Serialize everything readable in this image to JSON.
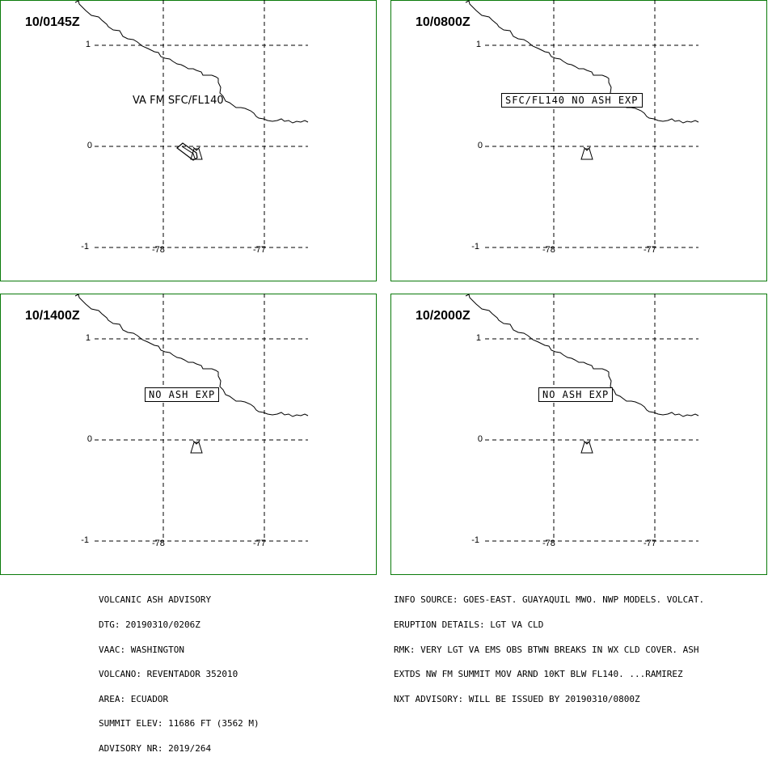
{
  "panels": [
    {
      "time": "10/0145Z",
      "annotation": "VA FM SFC/FL140",
      "annotation_boxed": false,
      "ash_polygon": true
    },
    {
      "time": "10/0800Z",
      "annotation": "SFC/FL140 NO ASH EXP",
      "annotation_boxed": true,
      "ash_polygon": false
    },
    {
      "time": "10/1400Z",
      "annotation": "NO ASH EXP",
      "annotation_boxed": true,
      "ash_polygon": false
    },
    {
      "time": "10/2000Z",
      "annotation": "NO ASH EXP",
      "annotation_boxed": true,
      "ash_polygon": false
    }
  ],
  "grid": {
    "lat_labels": [
      "1",
      "0",
      "-1"
    ],
    "lon_labels": [
      "-78",
      "-77"
    ]
  },
  "advisory_left": [
    "VOLCANIC ASH ADVISORY",
    "DTG: 20190310/0206Z",
    "VAAC: WASHINGTON",
    "VOLCANO: REVENTADOR 352010",
    "AREA: ECUADOR",
    "SUMMIT ELEV: 11686 FT (3562 M)",
    "ADVISORY NR: 2019/264"
  ],
  "advisory_right": [
    "INFO SOURCE: GOES-EAST. GUAYAQUIL MWO. NWP MODELS. VOLCAT.",
    "ERUPTION DETAILS: LGT VA CLD",
    "RMK: VERY LGT VA EMS OBS BTWN BREAKS IN WX CLD COVER. ASH",
    "EXTDS NW FM SUMMIT MOV ARND 10KT BLW FL140. ...RAMIREZ",
    "NXT ADVISORY: WILL BE ISSUED BY 20190310/0800Z"
  ],
  "colors": {
    "line": "#000000",
    "panel_border": "#0a7a0a",
    "background": "#ffffff"
  }
}
